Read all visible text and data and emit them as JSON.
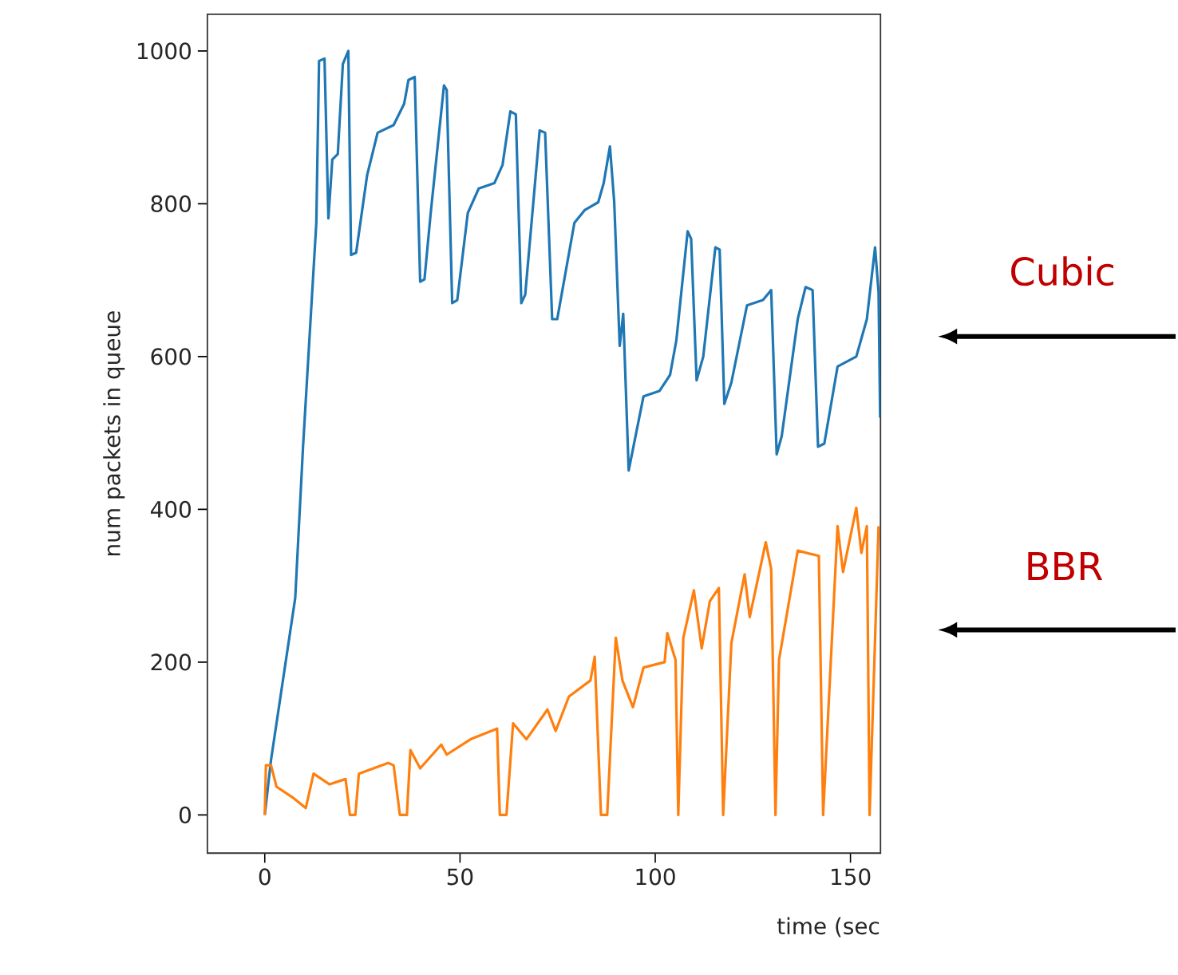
{
  "chart_data": {
    "type": "line",
    "xlabel": "time (sec",
    "ylabel": "num packets in queue",
    "xlim": [
      -14.7,
      157.7
    ],
    "ylim": [
      -50,
      1048
    ],
    "xticks": [
      0,
      50,
      100,
      150
    ],
    "yticks": [
      0,
      200,
      400,
      600,
      800,
      1000
    ],
    "grid": false,
    "legend": false,
    "series": [
      {
        "name": "Cubic",
        "color": "#1f77b4",
        "x": [
          0,
          1.6,
          7.8,
          9.8,
          13.2,
          13.9,
          15.3,
          16.3,
          17.3,
          18.7,
          20,
          21.4,
          22.1,
          23.4,
          26.2,
          28.9,
          33,
          35.7,
          36.8,
          38.4,
          39.8,
          40.9,
          42.5,
          45.9,
          46.6,
          48,
          49.3,
          52,
          54.8,
          58.8,
          60.9,
          62.9,
          64.3,
          65.7,
          66.7,
          70.4,
          71.8,
          73.6,
          74.9,
          79.3,
          82,
          85.4,
          86.8,
          88.4,
          89.5,
          90.9,
          91.8,
          93.2,
          97,
          101.1,
          103.8,
          105.4,
          108.3,
          109.2,
          110.6,
          112.3,
          115.4,
          116.5,
          117.7,
          119.5,
          123.5,
          127.6,
          129.7,
          131.1,
          132.4,
          136.5,
          138.5,
          140.3,
          141.7,
          143.3,
          146.7,
          151.5,
          154.2,
          156.3,
          157.2,
          157.6
        ],
        "values": [
          0,
          72,
          284,
          482,
          775,
          987,
          990,
          781,
          858,
          865,
          983,
          1000,
          733,
          736,
          837,
          893,
          903,
          931,
          962,
          966,
          698,
          701,
          788,
          955,
          949,
          670,
          674,
          788,
          820,
          827,
          851,
          921,
          917,
          670,
          681,
          896,
          893,
          649,
          649,
          775,
          792,
          802,
          827,
          875,
          802,
          614,
          656,
          451,
          548,
          555,
          576,
          621,
          764,
          754,
          569,
          600,
          743,
          740,
          538,
          566,
          667,
          674,
          687,
          472,
          496,
          649,
          691,
          687,
          482,
          486,
          587,
          600,
          649,
          743,
          684,
          520
        ]
      },
      {
        "name": "BBR",
        "color": "#ff7f0e",
        "x": [
          0,
          0.3,
          1.6,
          3,
          7.1,
          10.5,
          12.5,
          16.6,
          20.7,
          21.8,
          23.2,
          24.1,
          31.6,
          33,
          34.6,
          36.4,
          37.3,
          39.8,
          45.2,
          46.6,
          52.7,
          59.5,
          60.2,
          61.9,
          63.6,
          67,
          72.4,
          74.5,
          77.9,
          83.4,
          84.5,
          86.1,
          87.7,
          89.9,
          91.6,
          94.3,
          97,
          102.4,
          103.1,
          105.2,
          105.9,
          107.2,
          109.9,
          111.9,
          114,
          116.3,
          117.4,
          119.5,
          122.9,
          124.2,
          128.3,
          129.7,
          130.8,
          131.7,
          136.5,
          141.9,
          143,
          146.7,
          148.1,
          151.5,
          152.8,
          154.2,
          154.9,
          157.2
        ],
        "values": [
          0,
          65,
          65,
          37,
          23,
          9,
          54,
          40,
          47,
          0,
          0,
          54,
          68,
          65,
          0,
          0,
          85,
          61,
          92,
          79,
          99,
          113,
          0,
          0,
          120,
          99,
          138,
          110,
          155,
          176,
          207,
          0,
          0,
          232,
          176,
          141,
          193,
          200,
          238,
          203,
          0,
          232,
          294,
          218,
          280,
          297,
          0,
          225,
          315,
          259,
          357,
          322,
          0,
          203,
          346,
          339,
          0,
          378,
          318,
          402,
          343,
          378,
          0,
          378
        ]
      }
    ]
  }
}
